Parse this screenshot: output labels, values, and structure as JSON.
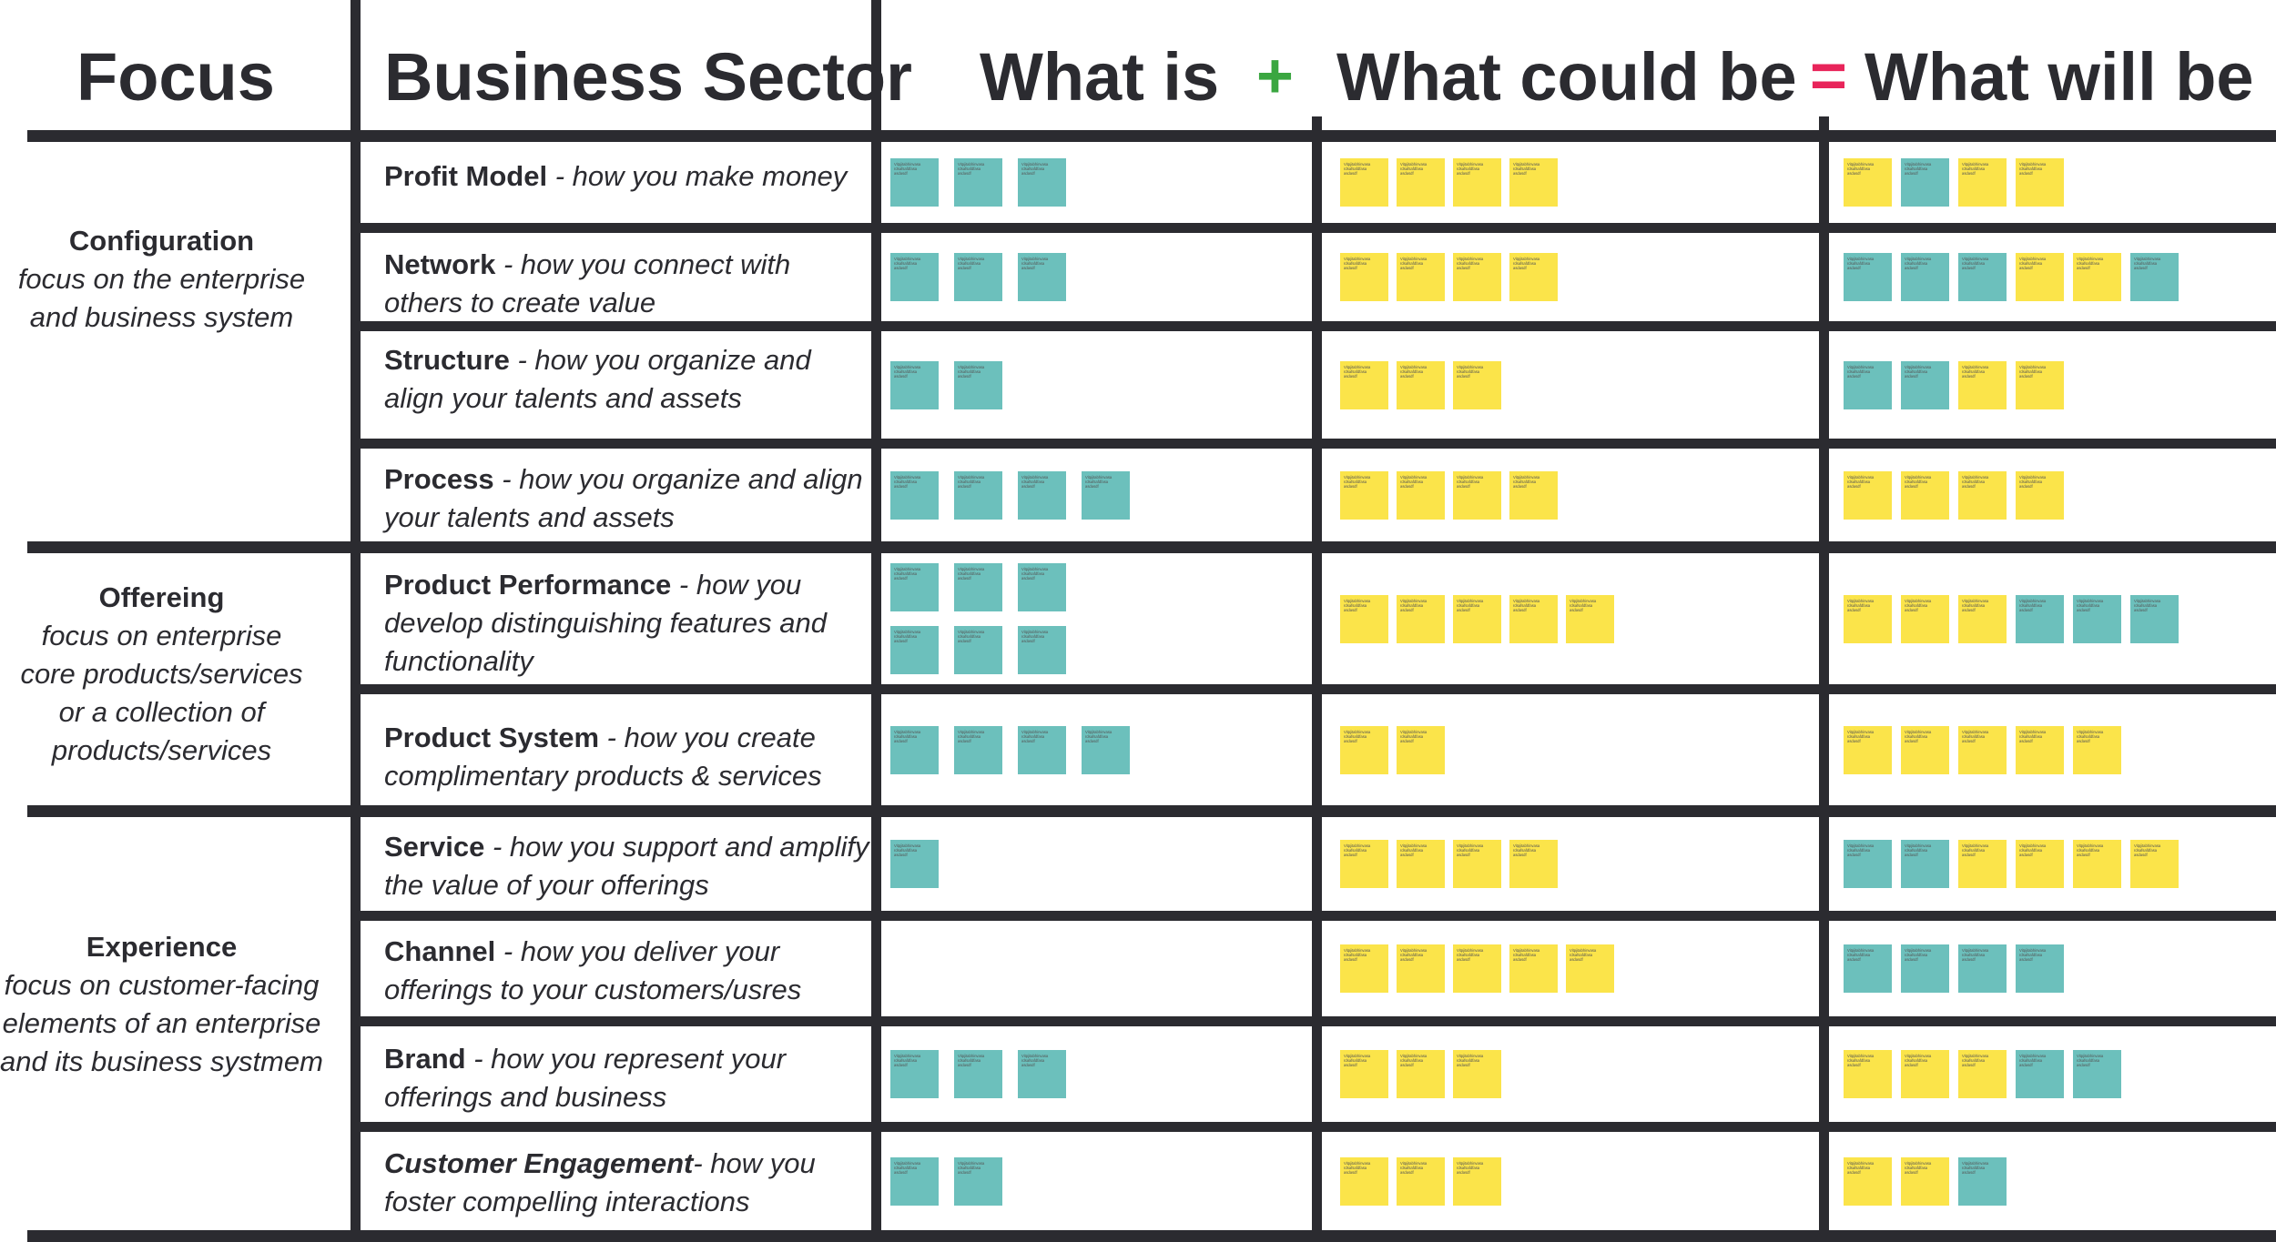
{
  "headers": {
    "focus": "Focus",
    "sector": "Business Sector",
    "what_is": "What is",
    "plus": "+",
    "what_could_be": "What could be",
    "equals": "=",
    "what_will_be": "What will be"
  },
  "colors": {
    "ink": "#2b2b30",
    "plus": "#3aa640",
    "equals": "#e8245a",
    "teal_note": "#6cc0bc",
    "yellow_note": "#fbe44a"
  },
  "focus_groups": [
    {
      "title": "Configuration",
      "description": [
        "focus on the enterprise",
        "and business system"
      ]
    },
    {
      "title": "Offereing",
      "description": [
        "focus on enterprise",
        "core products/services",
        "or a collection of",
        "products/services"
      ]
    },
    {
      "title": "Experience",
      "description": [
        "focus on customer-facing",
        "elements of an enterprise",
        "and its business systmem"
      ]
    }
  ],
  "note_placeholder": {
    "line1": "Vitpjitabhinvasa",
    "line2": "rdsafsafdfasa",
    "line3": "asdasdf"
  },
  "rows": [
    {
      "name": "Profit Model",
      "description": "- how you make money",
      "name_italic": false,
      "what_is": [
        "t",
        "t",
        "t"
      ],
      "what_could_be": [
        "y",
        "y",
        "y",
        "y"
      ],
      "what_will_be": [
        "y",
        "t",
        "y",
        "y"
      ]
    },
    {
      "name": "Network",
      "description": "- how you connect with others to create value",
      "name_italic": false,
      "what_is": [
        "t",
        "t",
        "t"
      ],
      "what_could_be": [
        "y",
        "y",
        "y",
        "y"
      ],
      "what_will_be": [
        "t",
        "t",
        "t",
        "y",
        "y",
        "t"
      ]
    },
    {
      "name": "Structure",
      "description": "- how you organize and align your talents and assets",
      "name_italic": false,
      "what_is": [
        "t",
        "t"
      ],
      "what_could_be": [
        "y",
        "y",
        "y"
      ],
      "what_will_be": [
        "t",
        "t",
        "y",
        "y"
      ]
    },
    {
      "name": "Process",
      "description": "- how you organize and align your talents and assets",
      "name_italic": false,
      "what_is": [
        "t",
        "t",
        "t",
        "t"
      ],
      "what_could_be": [
        "y",
        "y",
        "y",
        "y"
      ],
      "what_will_be": [
        "y",
        "y",
        "y",
        "y"
      ]
    },
    {
      "name": "Product Performance",
      "description": "- how you develop distinguishing features and functionality",
      "name_italic": false,
      "what_is": [
        "t",
        "t",
        "t",
        "t",
        "t",
        "t"
      ],
      "what_could_be": [
        "y",
        "y",
        "y",
        "y",
        "y"
      ],
      "what_will_be": [
        "y",
        "y",
        "y",
        "t",
        "t",
        "t"
      ]
    },
    {
      "name": "Product System",
      "description": "- how you create complimentary products & services",
      "name_italic": false,
      "what_is": [
        "t",
        "t",
        "t",
        "t"
      ],
      "what_could_be": [
        "y",
        "y"
      ],
      "what_will_be": [
        "y",
        "y",
        "y",
        "y",
        "y"
      ]
    },
    {
      "name": "Service",
      "description": "- how you support and amplify the value of your offerings",
      "name_italic": false,
      "what_is": [
        "t"
      ],
      "what_could_be": [
        "y",
        "y",
        "y",
        "y"
      ],
      "what_will_be": [
        "t",
        "t",
        "y",
        "y",
        "y",
        "y"
      ]
    },
    {
      "name": "Channel",
      "description": "- how you deliver your offerings to your customers/usres",
      "name_italic": false,
      "what_is": [],
      "what_could_be": [
        "y",
        "y",
        "y",
        "y",
        "y"
      ],
      "what_will_be": [
        "t",
        "t",
        "t",
        "t"
      ]
    },
    {
      "name": "Brand",
      "description": "- how you represent your offerings and business",
      "name_italic": false,
      "what_is": [
        "t",
        "t",
        "t"
      ],
      "what_could_be": [
        "y",
        "y",
        "y"
      ],
      "what_will_be": [
        "y",
        "y",
        "y",
        "t",
        "t"
      ]
    },
    {
      "name": "Customer Engagement",
      "description": "- how you foster compelling interactions",
      "name_italic": true,
      "what_is": [
        "t",
        "t"
      ],
      "what_could_be": [
        "y",
        "y",
        "y"
      ],
      "what_will_be": [
        "y",
        "y",
        "t"
      ]
    }
  ]
}
